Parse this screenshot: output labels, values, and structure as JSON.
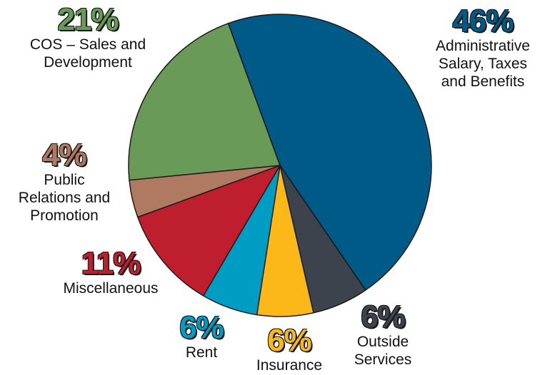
{
  "chart_data": {
    "type": "pie",
    "categories": [
      "Administrative\nSalary, Taxes\nand Benefits",
      "Outside\nServices",
      "Insurance",
      "Rent",
      "Miscellaneous",
      "Public\nRelations and\nPromotion",
      "COS – Sales and\nDevelopment"
    ],
    "values": [
      46,
      6,
      6,
      6,
      11,
      4,
      21
    ],
    "value_labels": [
      "46%",
      "6%",
      "6%",
      "6%",
      "11%",
      "4%",
      "21%"
    ],
    "colors": [
      "#005a87",
      "#3d434d",
      "#fbb818",
      "#009cc4",
      "#be1e2d",
      "#b07a62",
      "#6a9a57"
    ],
    "start_angle": -20,
    "direction": "clockwise"
  }
}
